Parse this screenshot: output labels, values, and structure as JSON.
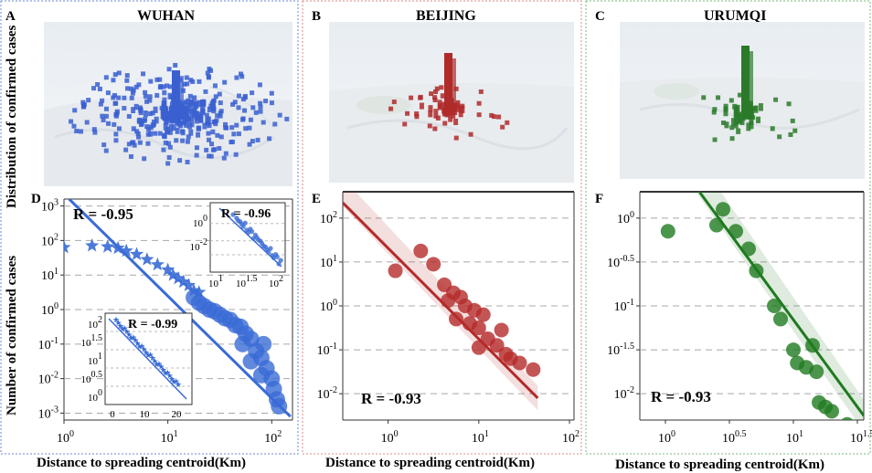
{
  "figure": {
    "ylabel_top": "Distribution of confirmed cases",
    "ylabel_bottom": "Number of confirmed cases",
    "xlabel": "Distance to spreading centroid(Km)"
  },
  "panels": [
    {
      "letter": "A",
      "city": "WUHAN",
      "map_color": "#3a5fd0",
      "frame_color": "#6a8ad8"
    },
    {
      "letter": "B",
      "city": "BEIJING",
      "map_color": "#b02a2a",
      "frame_color": "#e08a8a"
    },
    {
      "letter": "C",
      "city": "URUMQI",
      "map_color": "#2a7a2a",
      "frame_color": "#7ab87a"
    }
  ],
  "chart_data": [
    {
      "id": "D",
      "type": "scatter",
      "city": "WUHAN",
      "color": "#3a6bd6",
      "scale": "log-log",
      "r_label": "R = -0.95",
      "xlim": [
        0,
        2.2
      ],
      "ylim": [
        -3.2,
        3.2
      ],
      "x_ticks": [
        {
          "v": 0,
          "b": "10",
          "e": "0"
        },
        {
          "v": 1,
          "b": "10",
          "e": "1"
        },
        {
          "v": 2,
          "b": "10",
          "e": "2"
        }
      ],
      "y_ticks": [
        {
          "v": 3,
          "b": "10",
          "e": "3"
        },
        {
          "v": 2,
          "b": "10",
          "e": "2"
        },
        {
          "v": 1,
          "b": "10",
          "e": "1"
        },
        {
          "v": 0,
          "b": "10",
          "e": "0"
        },
        {
          "v": -1,
          "b": "10",
          "e": "-1"
        },
        {
          "v": -2,
          "b": "10",
          "e": "-2"
        },
        {
          "v": -3,
          "b": "10",
          "e": "-3"
        }
      ],
      "fit_line": [
        [
          0.05,
          3.2
        ],
        [
          2.18,
          -3.1
        ]
      ],
      "stars": [
        [
          0.0,
          1.8
        ],
        [
          0.27,
          1.85
        ],
        [
          0.42,
          1.82
        ],
        [
          0.52,
          1.78
        ],
        [
          0.6,
          1.7
        ],
        [
          0.7,
          1.6
        ],
        [
          0.8,
          1.45
        ],
        [
          0.9,
          1.3
        ],
        [
          1.0,
          1.15
        ],
        [
          1.05,
          1.0
        ],
        [
          1.1,
          0.9
        ],
        [
          1.15,
          0.8
        ],
        [
          1.2,
          0.7
        ],
        [
          1.25,
          0.55
        ],
        [
          1.3,
          0.5
        ]
      ],
      "points": [
        [
          1.25,
          0.35
        ],
        [
          1.3,
          0.2
        ],
        [
          1.35,
          0.1
        ],
        [
          1.4,
          0.0
        ],
        [
          1.45,
          -0.05
        ],
        [
          1.5,
          -0.15
        ],
        [
          1.55,
          -0.25
        ],
        [
          1.6,
          -0.3
        ],
        [
          1.65,
          -0.45
        ],
        [
          1.7,
          -0.5
        ],
        [
          1.75,
          -0.7
        ],
        [
          1.8,
          -0.85
        ],
        [
          1.85,
          -1.2
        ],
        [
          1.9,
          -1.4
        ],
        [
          1.95,
          -1.7
        ],
        [
          2.0,
          -2.0
        ],
        [
          2.02,
          -2.3
        ],
        [
          2.05,
          -2.6
        ],
        [
          2.07,
          -2.8
        ],
        [
          1.72,
          -1.0
        ],
        [
          1.8,
          -1.5
        ],
        [
          1.9,
          -1.9
        ],
        [
          1.92,
          -1.0
        ]
      ],
      "inset_top": {
        "r_label": "R = -0.96",
        "x_ticks": [
          {
            "b": "10",
            "e": "1"
          },
          {
            "b": "10",
            "e": "1.5"
          },
          {
            "b": "10",
            "e": "2"
          }
        ],
        "y_ticks": [
          {
            "b": "10",
            "e": "0"
          },
          {
            "b": "10",
            "e": "-2"
          }
        ]
      },
      "inset_bottom": {
        "r_label": "R = -0.99",
        "x_ticks": [
          "0",
          "10",
          "20"
        ],
        "y_ticks": [
          {
            "b": "10",
            "e": "2"
          },
          {
            "b": "10",
            "e": "1.5"
          },
          {
            "b": "10",
            "e": "1"
          },
          {
            "b": "10",
            "e": "0.5"
          },
          {
            "b": "10",
            "e": "0"
          }
        ]
      }
    },
    {
      "id": "E",
      "type": "scatter",
      "city": "BEIJING",
      "color": "#b52a2a",
      "scale": "log-log",
      "r_label": "R = -0.93",
      "xlim": [
        -0.5,
        2.05
      ],
      "ylim": [
        -2.6,
        2.6
      ],
      "x_ticks": [
        {
          "v": 0,
          "b": "10",
          "e": "0"
        },
        {
          "v": 1,
          "b": "10",
          "e": "1"
        },
        {
          "v": 2,
          "b": "10",
          "e": "2"
        }
      ],
      "y_ticks": [
        {
          "v": 2,
          "b": "10",
          "e": "2"
        },
        {
          "v": 1,
          "b": "10",
          "e": "1"
        },
        {
          "v": 0,
          "b": "10",
          "e": "0"
        },
        {
          "v": -1,
          "b": "10",
          "e": "-1"
        },
        {
          "v": -2,
          "b": "10",
          "e": "-2"
        }
      ],
      "fit_line": [
        [
          -0.5,
          2.35
        ],
        [
          1.65,
          -2.1
        ]
      ],
      "points": [
        [
          0.08,
          0.8
        ],
        [
          0.36,
          1.25
        ],
        [
          0.5,
          0.95
        ],
        [
          0.62,
          0.48
        ],
        [
          0.72,
          0.3
        ],
        [
          0.8,
          0.2
        ],
        [
          0.66,
          0.12
        ],
        [
          0.85,
          0.0
        ],
        [
          0.95,
          -0.1
        ],
        [
          1.05,
          -0.2
        ],
        [
          0.75,
          -0.3
        ],
        [
          0.9,
          -0.4
        ],
        [
          1.0,
          -0.5
        ],
        [
          1.1,
          -0.75
        ],
        [
          1.2,
          -0.9
        ],
        [
          1.3,
          -1.1
        ],
        [
          1.45,
          -1.3
        ],
        [
          1.6,
          -1.45
        ],
        [
          1.25,
          -0.55
        ],
        [
          1.0,
          -0.95
        ],
        [
          1.35,
          -1.2
        ]
      ]
    },
    {
      "id": "F",
      "type": "scatter",
      "city": "URUMQI",
      "color": "#1f7a1f",
      "scale": "log-log",
      "r_label": "R = -0.93",
      "xlim": [
        -0.2,
        1.55
      ],
      "ylim": [
        -2.3,
        0.3
      ],
      "x_ticks": [
        {
          "v": 0,
          "b": "10",
          "e": "0"
        },
        {
          "v": 0.5,
          "b": "10",
          "e": "0.5"
        },
        {
          "v": 1,
          "b": "10",
          "e": "1"
        },
        {
          "v": 1.5,
          "b": "10",
          "e": "1.5"
        }
      ],
      "y_ticks": [
        {
          "v": 0,
          "b": "10",
          "e": "0"
        },
        {
          "v": -0.5,
          "b": "10",
          "e": "-0.5"
        },
        {
          "v": -1,
          "b": "10",
          "e": "-1"
        },
        {
          "v": -1.5,
          "b": "10",
          "e": "-1.5"
        },
        {
          "v": -2,
          "b": "10",
          "e": "-2"
        }
      ],
      "fit_line": [
        [
          0.24,
          0.35
        ],
        [
          1.55,
          -2.25
        ]
      ],
      "points": [
        [
          0.02,
          -0.15
        ],
        [
          0.4,
          -0.08
        ],
        [
          0.45,
          0.1
        ],
        [
          0.55,
          -0.15
        ],
        [
          0.65,
          -0.35
        ],
        [
          0.71,
          -0.6
        ],
        [
          0.85,
          -1.0
        ],
        [
          0.9,
          -1.15
        ],
        [
          1.0,
          -1.5
        ],
        [
          1.03,
          -1.65
        ],
        [
          1.1,
          -1.7
        ],
        [
          1.18,
          -1.75
        ],
        [
          1.2,
          -2.1
        ],
        [
          1.25,
          -2.15
        ],
        [
          1.3,
          -2.2
        ],
        [
          1.42,
          -2.35
        ],
        [
          1.15,
          -1.45
        ]
      ]
    }
  ]
}
